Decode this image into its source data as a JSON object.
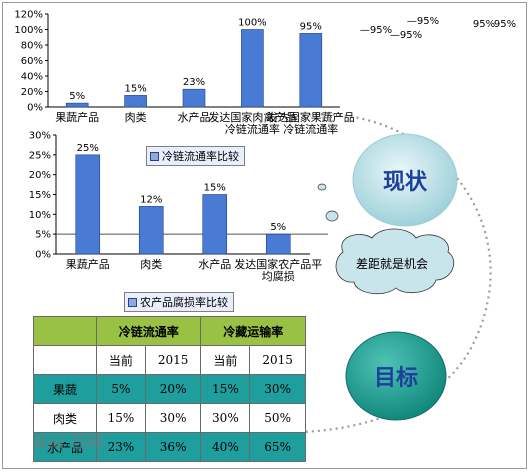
{
  "chart_data": [
    {
      "type": "bar",
      "categories": [
        "果蔬产品",
        "肉类",
        "水产品",
        "发达国家肉禽产品冷链流通率",
        "发达国家果蔬产品冷链流通率"
      ],
      "values": [
        5,
        15,
        23,
        100,
        95
      ],
      "value_labels": [
        "5%",
        "15%",
        "23%",
        "100%",
        "95%"
      ],
      "yticks": [
        "0%",
        "20%",
        "40%",
        "60%",
        "80%",
        "100%",
        "120%"
      ],
      "ylim": [
        0,
        120
      ],
      "bar_color": "#4a7bd4",
      "grid": false
    },
    {
      "type": "bar",
      "title": "农产品腐损率比较",
      "categories": [
        "果蔬产品",
        "肉类",
        "水产品",
        "发达国家农产品平均腐损"
      ],
      "values": [
        25,
        12,
        15,
        5
      ],
      "value_labels": [
        "25%",
        "12%",
        "15%",
        "5%"
      ],
      "yticks": [
        "0%",
        "5%",
        "10%",
        "15%",
        "20%",
        "25%",
        "30%"
      ],
      "ylim": [
        0,
        30
      ],
      "reference_line": 5,
      "legend": "冷链流通率比较",
      "bar_color": "#4a7bd4",
      "grid": false
    }
  ],
  "stray_labels": [
    "95%",
    "95%",
    "95%",
    "95%",
    "95%",
    "95%"
  ],
  "bubbles": {
    "top": "现状",
    "mid": "差距就是机会",
    "bottom": "目标"
  },
  "table": {
    "headers": [
      "冷链流通率",
      "冷藏运输率"
    ],
    "subheaders": [
      "当前",
      "2015",
      "当前",
      "2015"
    ],
    "rows": [
      {
        "label": "果蔬",
        "values": [
          "5%",
          "20%",
          "15%",
          "30%"
        ]
      },
      {
        "label": "肉类",
        "values": [
          "15%",
          "30%",
          "30%",
          "50%"
        ]
      },
      {
        "label": "水产品",
        "values": [
          "23%",
          "36%",
          "40%",
          "65%"
        ]
      }
    ]
  },
  "watermark": "Bai 百科",
  "colors": {
    "bar": "#4a7bd4",
    "bubble_top": "#b8e0e6",
    "bubble_bottom": "#2aa99c",
    "table_header": "#99c244",
    "table_teal": "#1f9e9e"
  }
}
